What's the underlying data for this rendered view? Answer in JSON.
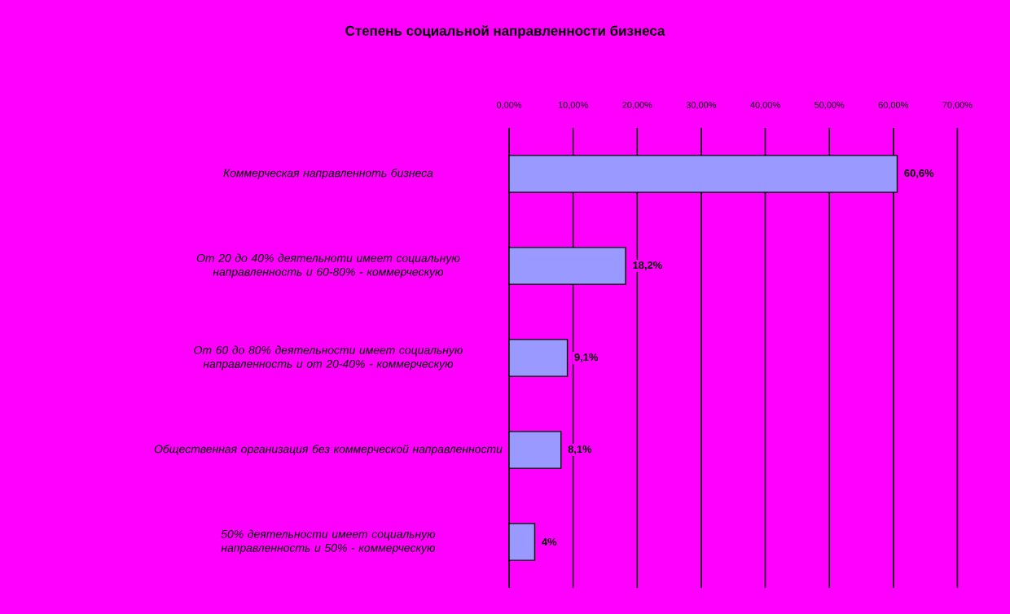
{
  "chart_data": {
    "type": "bar",
    "orientation": "horizontal",
    "title": "Степень социальной направленности бизнеса",
    "categories": [
      "Коммерческая направленноть бизнеса",
      "От 20 до 40% деятельноти имеет социальную направленность и 60-80% - коммерческую",
      "От 60 до 80% деятельности имеет социальную направленность и от 20-40% - коммерческую",
      "Общественная организация без коммерческой направленности",
      "50% деятельности имеет социальную направленность и 50% - коммерческую"
    ],
    "values": [
      60.6,
      18.2,
      9.1,
      8.1,
      4
    ],
    "value_labels": [
      "60,6%",
      "18,2%",
      "9,1%",
      "8,1%",
      "4%"
    ],
    "color": "#9999ff",
    "xlim": [
      0,
      70
    ],
    "xticks": [
      {
        "value": 0,
        "label": "0,00%"
      },
      {
        "value": 10,
        "label": "10,00%"
      },
      {
        "value": 20,
        "label": "20,00%"
      },
      {
        "value": 30,
        "label": "30,00%"
      },
      {
        "value": 40,
        "label": "40,00%"
      },
      {
        "value": 50,
        "label": "50,00%"
      },
      {
        "value": 60,
        "label": "60,00%"
      },
      {
        "value": 70,
        "label": "70,00%"
      }
    ],
    "grid": "x"
  }
}
